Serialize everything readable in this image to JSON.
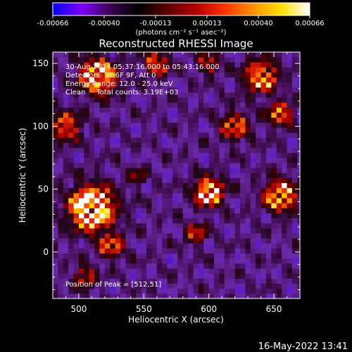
{
  "colorbar": {
    "tick_labels": [
      "-0.00066",
      "-0.00040",
      "-0.00013",
      "0.00013",
      "0.00040",
      "0.00066"
    ],
    "units": "(photons cm⁻² s⁻¹ asec⁻²)",
    "min": -0.00066,
    "max": 0.00066,
    "colors": [
      "#0000ff",
      "#7f00ff",
      "#3a0050",
      "#000000",
      "#5a0000",
      "#b00000",
      "#ff3000",
      "#ff9000",
      "#ffe000",
      "#ffffff"
    ]
  },
  "chart_data": {
    "type": "heatmap",
    "title": "Reconstructed RHESSI Image",
    "xlabel": "Heliocentric X (arcsec)",
    "ylabel": "Heliocentric Y (arcsec)",
    "xlim": [
      480,
      670
    ],
    "ylim": [
      -37,
      159
    ],
    "x_ticks": [
      500,
      550,
      600,
      650
    ],
    "y_ticks": [
      0,
      50,
      100,
      150
    ],
    "x_tick_labels": [
      "500",
      "550",
      "600",
      "650"
    ],
    "y_tick_labels": [
      "0",
      "50",
      "100",
      "150"
    ],
    "peak_position": [
      512,
      51
    ],
    "annotations": [
      "30-Aug-2014 05:37:16.000 to 05:43:16.000",
      "Detectors: 3F 6F 9F, Att 0",
      "Energy Range: 12.0 - 25.0 keV",
      "Clean     Total counts: 3.19E+03"
    ],
    "footer_annotation": "Position of Peak = [512,51]"
  },
  "timestamp": "16-May-2022 13:41"
}
